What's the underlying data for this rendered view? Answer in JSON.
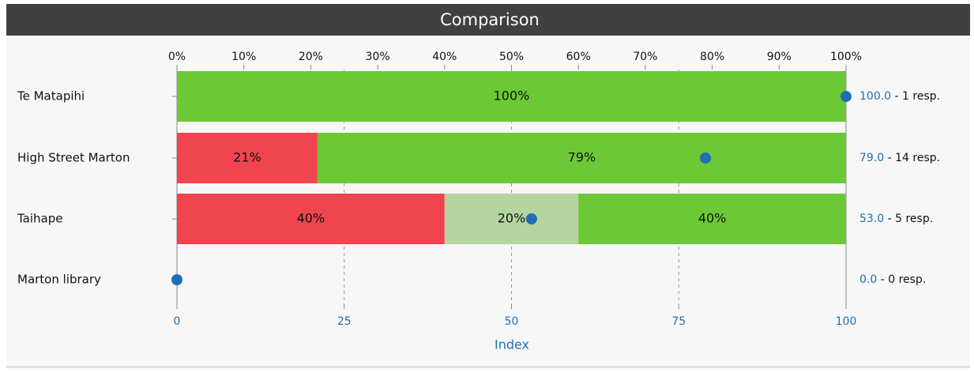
{
  "chart_data": {
    "type": "bar",
    "orientation": "horizontal",
    "stacked": true,
    "title": "Comparison",
    "categories": [
      "Te Matapihi",
      "High Street Marton",
      "Taihape",
      "Marton library"
    ],
    "series": [
      {
        "color": "#f0454f",
        "values": [
          0,
          21,
          40,
          0
        ],
        "value_labels": [
          null,
          "21%",
          "40%",
          null
        ]
      },
      {
        "color": "#b5d5a0",
        "values": [
          0,
          0,
          20,
          0
        ],
        "value_labels": [
          null,
          null,
          "20%",
          null
        ]
      },
      {
        "color": "#6cc935",
        "values": [
          100,
          79,
          40,
          0
        ],
        "value_labels": [
          "100%",
          "79%",
          "40%",
          null
        ]
      }
    ],
    "xlim": [
      0,
      100
    ],
    "xticks": [
      {
        "value": 0,
        "label": "0%"
      },
      {
        "value": 10,
        "label": "10%"
      },
      {
        "value": 20,
        "label": "20%"
      },
      {
        "value": 30,
        "label": "30%"
      },
      {
        "value": 40,
        "label": "40%"
      },
      {
        "value": 50,
        "label": "50%"
      },
      {
        "value": 60,
        "label": "60%"
      },
      {
        "value": 70,
        "label": "70%"
      },
      {
        "value": 80,
        "label": "80%"
      },
      {
        "value": 90,
        "label": "90%"
      },
      {
        "value": 100,
        "label": "100%"
      }
    ],
    "index": {
      "color": "#1f6fb4",
      "axis": "x2",
      "values": [
        100,
        79,
        53,
        0
      ],
      "value_labels": [
        "100.0",
        "79.0",
        "53.0",
        "0.0"
      ]
    },
    "responses": {
      "values": [
        1,
        14,
        5,
        0
      ],
      "value_labels": [
        "- 1 resp.",
        "- 14 resp.",
        "- 5 resp.",
        "- 0 resp."
      ]
    },
    "x2label": "Index",
    "x2lim": [
      0,
      100
    ],
    "x2ticks": [
      0,
      25,
      50,
      75,
      100
    ],
    "grid": true
  }
}
